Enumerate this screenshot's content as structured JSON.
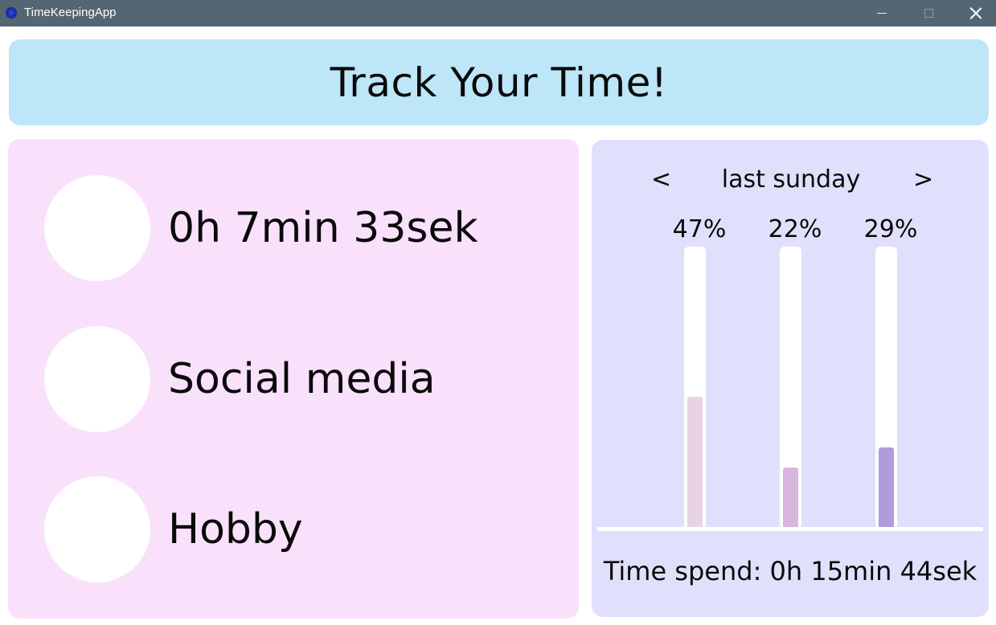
{
  "window": {
    "title": "TimeKeepingApp",
    "titlebar_color": "#546673"
  },
  "header": {
    "title": "Track Your Time!",
    "background": "#bde6f8"
  },
  "activities": {
    "background": "#f9e1fc",
    "items": [
      {
        "label": "0h 7min 33sek"
      },
      {
        "label": "Social media"
      },
      {
        "label": "Hobby"
      }
    ]
  },
  "stats": {
    "background": "#e1e0fc",
    "nav_prev": "<",
    "nav_next": ">",
    "day": "last sunday",
    "total_label": "Time spend: 0h 15min 44sek"
  },
  "chart_data": {
    "type": "bar",
    "values": [
      47,
      22,
      29
    ],
    "value_labels": [
      "47%",
      "22%",
      "29%"
    ],
    "colors": [
      "#e8d2e6",
      "#d7b6df",
      "#b19bdb"
    ],
    "ylim": [
      0,
      100
    ]
  }
}
